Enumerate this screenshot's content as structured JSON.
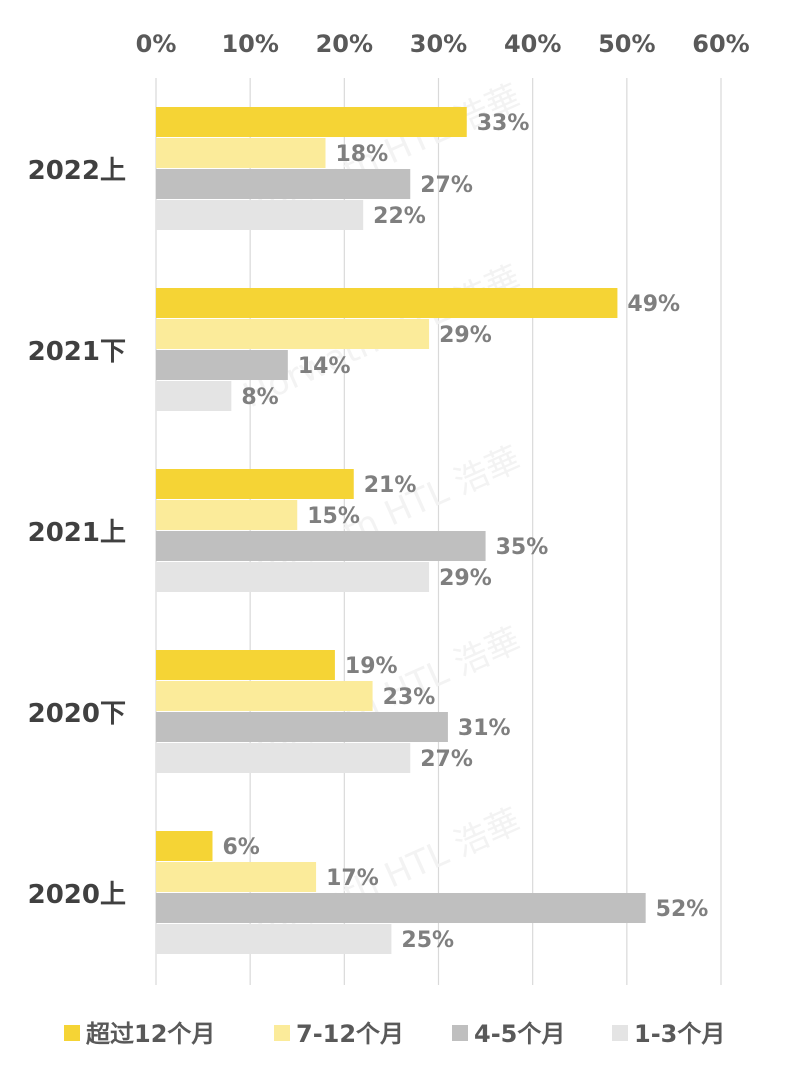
{
  "chart_data": {
    "type": "bar",
    "orientation": "horizontal",
    "categories": [
      "2022上",
      "2021下",
      "2021上",
      "2020下",
      "2020上"
    ],
    "series": [
      {
        "name": "超过12个月",
        "color": "#f5d435",
        "values": [
          33,
          49,
          21,
          19,
          6
        ]
      },
      {
        "name": "7-12个月",
        "color": "#fbeb9a",
        "values": [
          18,
          29,
          15,
          23,
          17
        ]
      },
      {
        "name": "4-5个月",
        "color": "#bfbfbf",
        "values": [
          27,
          14,
          35,
          31,
          52
        ]
      },
      {
        "name": "1-3个月",
        "color": "#e4e4e4",
        "values": [
          22,
          8,
          29,
          27,
          25
        ]
      }
    ],
    "xlim": [
      0,
      60
    ],
    "xticks": [
      "0%",
      "10%",
      "20%",
      "30%",
      "40%",
      "50%",
      "60%"
    ],
    "value_suffix": "%",
    "x_axis_position": "top",
    "grid": true,
    "legend_position": "bottom",
    "watermark": "Horwath HTL 浩華"
  }
}
